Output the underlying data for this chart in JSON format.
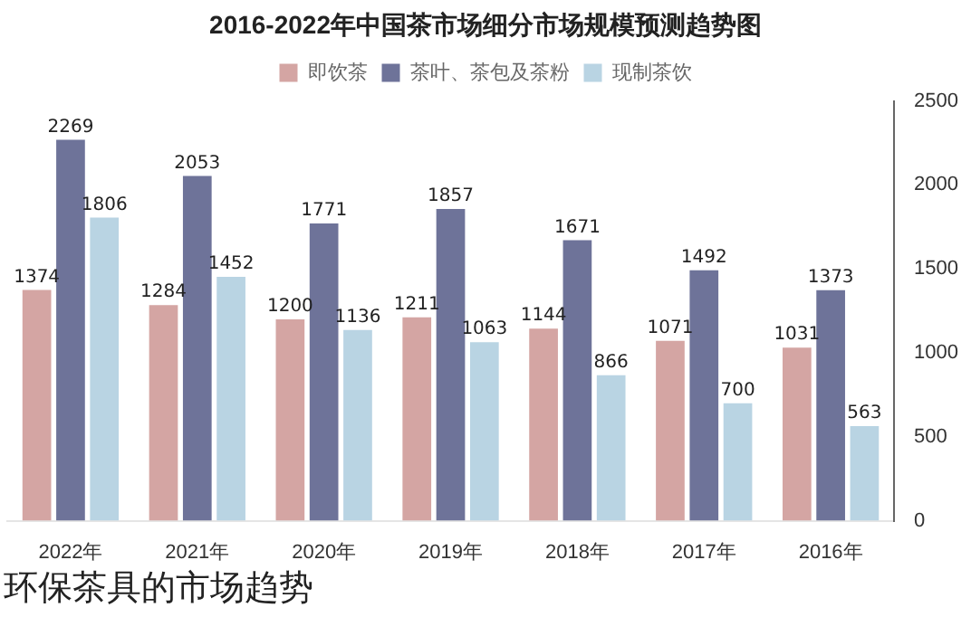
{
  "chart_data": {
    "type": "bar",
    "title": "2016-2022年中国茶市场细分市场规模预测趋势图",
    "categories": [
      "2022年",
      "2021年",
      "2020年",
      "2019年",
      "2018年",
      "2017年",
      "2016年"
    ],
    "series": [
      {
        "name": "即饮茶",
        "color": "#d4a5a3",
        "values": [
          1374,
          1284,
          1200,
          1211,
          1144,
          1071,
          1031
        ]
      },
      {
        "name": "茶叶、茶包及茶粉",
        "color": "#6e7399",
        "values": [
          2269,
          2053,
          1771,
          1857,
          1671,
          1492,
          1373
        ]
      },
      {
        "name": "现制茶饮",
        "color": "#b9d4e3",
        "values": [
          1806,
          1452,
          1136,
          1063,
          866,
          700,
          563
        ]
      }
    ],
    "ylim": [
      0,
      2500
    ],
    "yticks": [
      0,
      500,
      1000,
      1500,
      2000,
      2500
    ],
    "data_labels": true,
    "legend": "top",
    "grid": false,
    "annotations": [
      "环保茶具的市场趋势"
    ]
  }
}
